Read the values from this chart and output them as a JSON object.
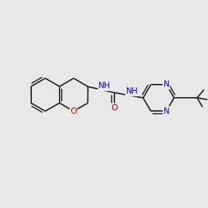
{
  "bg_color": "#e8e8e8",
  "bond_color": "#2a2a2a",
  "N_color": "#0000ee",
  "O_color": "#cc0000",
  "line_width": 1.4,
  "font_size_atom": 8.5,
  "fig_size": [
    3.0,
    3.0
  ],
  "dpi": 100,
  "xlim": [
    0,
    10
  ],
  "ylim": [
    0,
    10
  ]
}
